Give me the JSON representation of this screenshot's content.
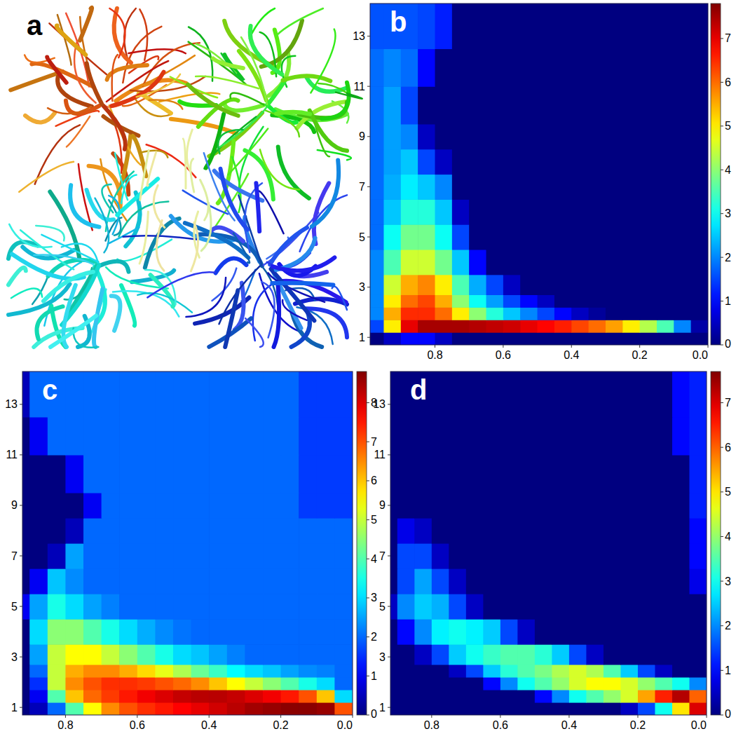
{
  "image": {
    "title": "a"
  },
  "chart_data": [
    {
      "type": "heatmap",
      "title": "b",
      "x_edges": [
        1,
        0.95,
        0.9,
        0.85,
        0.8,
        0.75,
        0.7,
        0.65,
        0.6,
        0.55,
        0.5,
        0.45,
        0.4,
        0.35,
        0.3,
        0.25,
        0.2,
        0.15,
        0.1,
        0.05,
        0
      ],
      "y_edges": [
        0.7,
        1.2,
        1.7,
        2.2,
        2.7,
        3.5,
        4.5,
        5.5,
        6.5,
        7.5,
        8.5,
        9.5,
        11,
        12.5,
        14.3
      ],
      "z": [
        [
          0,
          0.5,
          1,
          1,
          0.5,
          0,
          0,
          0,
          0,
          0,
          0,
          0,
          0,
          0,
          0,
          0,
          0,
          0,
          0,
          0
        ],
        [
          1.5,
          5,
          7,
          7.5,
          7.5,
          7.5,
          7.4,
          7.3,
          7.2,
          7,
          6.8,
          6.6,
          6.3,
          6,
          5.6,
          5,
          4.3,
          3.5,
          2,
          0.3
        ],
        [
          2,
          5.5,
          6.5,
          6.5,
          6,
          5,
          4,
          3.2,
          2.5,
          2,
          1.5,
          1,
          0.5,
          0.2,
          0,
          0,
          0,
          0,
          0,
          0
        ],
        [
          2,
          5,
          6,
          6.3,
          5.5,
          4,
          3,
          2.2,
          1.5,
          1,
          0.5,
          0,
          0,
          0,
          0,
          0,
          0,
          0,
          0,
          0
        ],
        [
          2,
          4.5,
          5.5,
          5.8,
          5,
          3.5,
          2.3,
          1.5,
          0.5,
          0,
          0,
          0,
          0,
          0,
          0,
          0,
          0,
          0,
          0,
          0
        ],
        [
          2,
          3.5,
          4.5,
          4.5,
          3.8,
          2.5,
          1,
          0,
          0,
          0,
          0,
          0,
          0,
          0,
          0,
          0,
          0,
          0,
          0,
          0
        ],
        [
          1.8,
          3,
          3.8,
          3.8,
          3,
          1.5,
          0,
          0,
          0,
          0,
          0,
          0,
          0,
          0,
          0,
          0,
          0,
          0,
          0,
          0
        ],
        [
          1.8,
          2.5,
          3.2,
          3.2,
          2.5,
          0.5,
          0,
          0,
          0,
          0,
          0,
          0,
          0,
          0,
          0,
          0,
          0,
          0,
          0,
          0
        ],
        [
          1.8,
          2.3,
          2.8,
          2.5,
          2,
          0,
          0,
          0,
          0,
          0,
          0,
          0,
          0,
          0,
          0,
          0,
          0,
          0,
          0,
          0
        ],
        [
          1.8,
          2.2,
          2.5,
          1.5,
          0.5,
          0,
          0,
          0,
          0,
          0,
          0,
          0,
          0,
          0,
          0,
          0,
          0,
          0,
          0,
          0
        ],
        [
          1.8,
          2.2,
          2,
          0.5,
          0,
          0,
          0,
          0,
          0,
          0,
          0,
          0,
          0,
          0,
          0,
          0,
          0,
          0,
          0,
          0
        ],
        [
          1.8,
          2.2,
          1.5,
          0,
          0,
          0,
          0,
          0,
          0,
          0,
          0,
          0,
          0,
          0,
          0,
          0,
          0,
          0,
          0,
          0
        ],
        [
          1.8,
          2,
          1.8,
          1,
          0,
          0,
          0,
          0,
          0,
          0,
          0,
          0,
          0,
          0,
          0,
          0,
          0,
          0,
          0,
          0
        ],
        [
          1.6,
          1.6,
          1.6,
          1.5,
          1.2,
          0,
          0,
          0,
          0,
          0,
          0,
          0,
          0,
          0,
          0,
          0,
          0,
          0,
          0,
          0
        ]
      ],
      "xlim": [
        0.99,
        0
      ],
      "ylim": [
        0.7,
        14.3
      ],
      "xticks": [
        0.8,
        0.6,
        0.4,
        0.2,
        {
          "value": 0,
          "label": "0.0"
        }
      ],
      "yticks": [
        1,
        3,
        5,
        7,
        9,
        11,
        13
      ],
      "colorbar": {
        "range": [
          0,
          7.8
        ],
        "ticks": [
          0,
          1,
          2,
          3,
          4,
          5,
          6,
          7
        ]
      }
    },
    {
      "type": "heatmap",
      "title": "c",
      "x_edges": [
        1,
        0.95,
        0.9,
        0.85,
        0.8,
        0.75,
        0.7,
        0.65,
        0.6,
        0.55,
        0.5,
        0.45,
        0.4,
        0.35,
        0.3,
        0.25,
        0.2,
        0.15,
        0.1,
        0.05,
        0
      ],
      "y_edges": [
        0.7,
        1.2,
        1.7,
        2.2,
        2.7,
        3.5,
        4.5,
        5.5,
        6.5,
        7.5,
        8.5,
        9.5,
        11,
        12.5,
        14.3
      ],
      "z": [
        [
          0,
          0,
          0.5,
          2,
          4,
          5.5,
          6.5,
          7,
          7.3,
          7.5,
          7.7,
          7.9,
          8.1,
          8.3,
          8.5,
          8.6,
          8.7,
          8.7,
          8.6,
          7
        ],
        [
          0,
          0,
          1,
          4,
          6,
          6.8,
          7.2,
          7.5,
          7.8,
          8,
          8.2,
          8.3,
          8.3,
          8.2,
          8,
          7.8,
          7.5,
          7,
          6,
          3
        ],
        [
          0,
          0,
          1.5,
          5,
          6.5,
          7,
          7.3,
          7.3,
          7.2,
          7,
          6.8,
          6.5,
          6,
          5.5,
          5,
          4.5,
          4,
          3.5,
          3,
          2
        ],
        [
          0,
          0,
          2,
          5,
          6.2,
          6.5,
          6.5,
          6.2,
          5.8,
          5.3,
          4.8,
          4.2,
          3.8,
          3.3,
          3,
          2.8,
          2.5,
          2.3,
          2.2,
          2
        ],
        [
          0,
          0,
          2.5,
          5,
          5.5,
          5.5,
          5,
          4.5,
          4,
          3.5,
          3,
          2.8,
          2.5,
          2.2,
          2,
          2,
          2,
          2,
          2,
          2
        ],
        [
          0,
          0,
          3,
          4.5,
          4.5,
          4,
          3.5,
          3,
          2.6,
          2.3,
          2.1,
          2,
          2,
          2,
          2,
          2,
          2,
          2,
          2,
          2
        ],
        [
          0,
          1,
          2.5,
          3.5,
          3,
          2.5,
          2.2,
          2,
          2,
          2,
          2,
          2,
          2,
          2,
          2,
          2,
          2,
          2,
          2,
          2
        ],
        [
          0,
          0,
          1,
          2.8,
          2.3,
          2,
          2,
          2,
          2,
          2,
          2,
          2,
          2,
          2,
          2,
          2,
          2,
          2,
          2,
          2
        ],
        [
          0,
          0,
          0,
          0.5,
          2.5,
          2,
          2,
          2,
          2,
          2,
          2,
          2,
          2,
          2,
          2,
          2,
          2,
          2,
          2,
          2
        ],
        [
          0,
          0,
          0,
          0,
          0.5,
          2,
          2,
          2,
          2,
          2,
          2,
          2,
          2,
          2,
          2,
          2,
          2,
          2,
          2,
          2
        ],
        [
          0,
          0,
          0,
          0,
          0,
          1,
          2,
          2,
          2,
          2,
          2,
          2,
          2,
          2,
          2,
          2,
          2,
          1.6,
          1.6,
          1.6
        ],
        [
          0,
          0,
          0,
          0,
          1,
          2,
          2,
          2,
          2,
          2,
          2,
          2,
          2,
          2,
          2,
          2,
          2,
          1.6,
          1.6,
          1.6
        ],
        [
          0,
          0,
          1,
          2,
          2,
          2,
          2,
          2,
          2,
          2,
          2,
          2,
          2,
          2,
          2,
          2,
          2,
          1.6,
          1.6,
          1.6
        ],
        [
          0,
          0.5,
          2,
          2,
          2,
          2,
          2,
          2,
          2,
          2,
          2,
          2,
          2,
          2,
          2,
          2,
          2,
          1.6,
          1.6,
          1.6
        ]
      ],
      "xlim": [
        0.92,
        0
      ],
      "ylim": [
        0.7,
        14.3
      ],
      "xticks": [
        0.8,
        0.6,
        0.4,
        0.2,
        {
          "value": 0,
          "label": "0.0"
        }
      ],
      "yticks": [
        1,
        3,
        5,
        7,
        9,
        11,
        13
      ],
      "colorbar": {
        "range": [
          0,
          8.8
        ],
        "ticks": [
          0,
          1,
          2,
          3,
          4,
          5,
          6,
          7,
          8
        ]
      }
    },
    {
      "type": "heatmap",
      "title": "d",
      "x_edges": [
        1,
        0.95,
        0.9,
        0.85,
        0.8,
        0.75,
        0.7,
        0.65,
        0.6,
        0.55,
        0.5,
        0.45,
        0.4,
        0.35,
        0.3,
        0.25,
        0.2,
        0.15,
        0.1,
        0.05,
        0
      ],
      "y_edges": [
        0.7,
        1.2,
        1.7,
        2.2,
        2.7,
        3.5,
        4.5,
        5.5,
        6.5,
        7.5,
        8.5,
        9.5,
        11,
        12.5,
        14.3
      ],
      "z": [
        [
          0,
          0,
          0,
          0,
          0,
          0,
          0,
          0,
          0,
          0,
          0,
          0,
          0,
          0,
          0,
          0.5,
          1.5,
          3,
          5,
          7
        ],
        [
          0,
          0,
          0,
          0,
          0,
          0,
          0,
          0,
          0,
          0,
          1,
          2,
          3,
          3.5,
          4,
          4.5,
          5.5,
          6.5,
          7.3,
          6
        ],
        [
          0,
          0,
          0,
          0,
          0,
          0,
          0,
          1,
          2,
          3,
          3.5,
          4,
          4.5,
          4.8,
          4.8,
          4.5,
          4,
          3.5,
          3,
          2
        ],
        [
          0,
          0,
          0,
          0,
          0,
          0.5,
          1.5,
          2.5,
          3.2,
          3.5,
          3.8,
          4.2,
          4.5,
          4.2,
          3.5,
          2.5,
          1.5,
          0.5,
          0,
          0
        ],
        [
          0,
          0,
          0,
          0.5,
          1.5,
          2.5,
          3,
          3.3,
          3.5,
          3.5,
          3.2,
          2.5,
          1.5,
          0.5,
          0,
          0,
          0,
          0,
          0,
          0
        ],
        [
          0,
          0,
          1,
          2,
          2.8,
          3,
          2.8,
          2.5,
          1.5,
          0.5,
          0,
          0,
          0,
          0,
          0,
          0,
          0,
          0,
          0,
          0
        ],
        [
          0,
          0.5,
          2,
          2.5,
          2.3,
          1.5,
          0.5,
          0,
          0,
          0,
          0,
          0,
          0,
          0,
          0,
          0,
          0,
          0,
          0,
          0
        ],
        [
          0,
          0,
          1.5,
          2.2,
          1.5,
          0.5,
          0,
          0,
          0,
          0,
          0,
          0,
          0,
          0,
          0,
          0,
          0,
          0,
          0,
          0.8
        ],
        [
          0,
          0,
          1.5,
          1.5,
          0.5,
          0,
          0,
          0,
          0,
          0,
          0,
          0,
          0,
          0,
          0,
          0,
          0,
          0,
          0,
          1
        ],
        [
          0,
          0,
          0.8,
          0.5,
          0,
          0,
          0,
          0,
          0,
          0,
          0,
          0,
          0,
          0,
          0,
          0,
          0,
          0,
          0,
          1
        ],
        [
          0,
          0,
          0,
          0,
          0,
          0,
          0,
          0,
          0,
          0,
          0,
          0,
          0,
          0,
          0,
          0,
          0,
          0,
          0,
          1.2
        ],
        [
          0,
          0,
          0,
          0,
          0,
          0,
          0,
          0,
          0,
          0,
          0,
          0,
          0,
          0,
          0,
          0,
          0,
          0,
          0,
          1.2
        ],
        [
          0,
          0,
          0,
          0,
          0,
          0,
          0,
          0,
          0,
          0,
          0,
          0,
          0,
          0,
          0,
          0,
          0,
          0,
          1,
          1.2
        ],
        [
          0,
          0,
          0,
          0,
          0,
          0,
          0,
          0,
          0,
          0,
          0,
          0,
          0,
          0,
          0,
          0,
          0,
          0,
          1,
          1.2
        ]
      ],
      "xlim": [
        0.92,
        0
      ],
      "ylim": [
        0.7,
        14.3
      ],
      "xticks": [
        0.8,
        0.6,
        0.4,
        0.2,
        {
          "value": 0,
          "label": "0.0"
        }
      ],
      "yticks": [
        1,
        3,
        5,
        7,
        9,
        11,
        13
      ],
      "colorbar": {
        "range": [
          0,
          7.7
        ],
        "ticks": [
          0,
          1,
          2,
          3,
          4,
          5,
          6,
          7
        ]
      }
    }
  ]
}
